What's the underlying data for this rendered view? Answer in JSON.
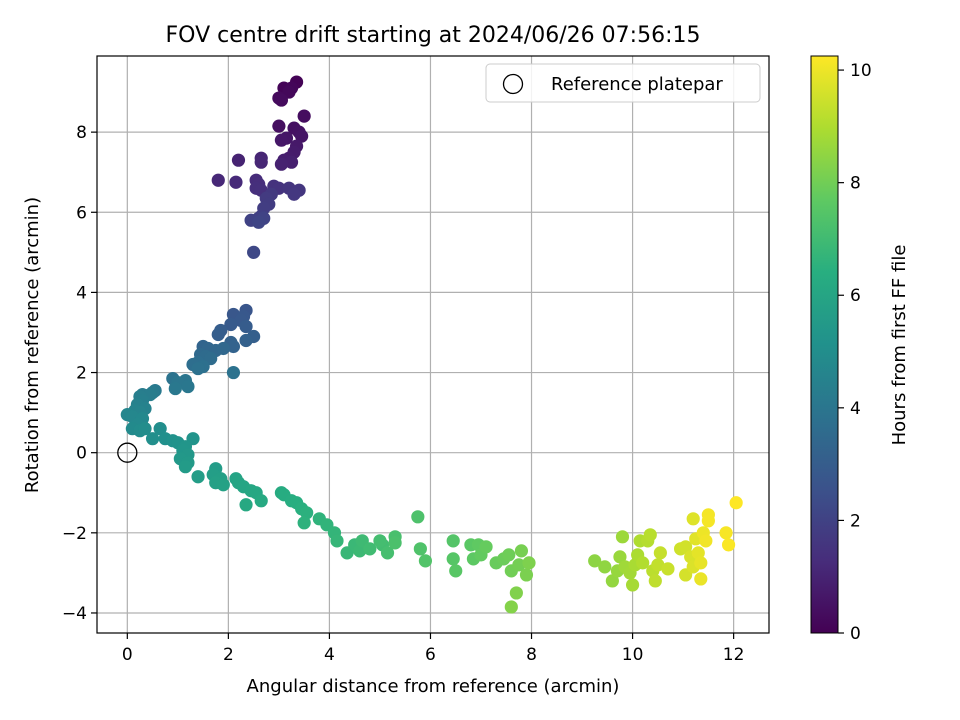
{
  "chart_data": {
    "type": "scatter",
    "title": "FOV centre drift starting at 2024/06/26 07:56:15",
    "xlabel": "Angular distance from reference (arcmin)",
    "ylabel": "Rotation from reference (arcmin)",
    "xlim": [
      -0.6,
      12.7
    ],
    "ylim": [
      -4.5,
      9.9
    ],
    "xticks": [
      0,
      2,
      4,
      6,
      8,
      10,
      12
    ],
    "yticks": [
      -4,
      -2,
      0,
      2,
      4,
      6,
      8
    ],
    "grid": true,
    "legend": {
      "placement": "top-right",
      "entries": [
        "Reference platepar"
      ]
    },
    "reference_point": {
      "x": 0,
      "y": 0,
      "label": "Reference platepar"
    },
    "colorbar": {
      "label": "Hours from first FF file",
      "range": [
        0,
        10.25
      ],
      "ticks": [
        0,
        2,
        4,
        6,
        8,
        10
      ],
      "colormap": "viridis"
    },
    "points": [
      [
        3.35,
        9.25,
        0.05
      ],
      [
        3.1,
        9.1,
        0.1
      ],
      [
        3.25,
        9.1,
        0.15
      ],
      [
        3.2,
        9.0,
        0.2
      ],
      [
        3.0,
        8.85,
        0.25
      ],
      [
        3.05,
        8.8,
        0.3
      ],
      [
        3.5,
        8.4,
        0.35
      ],
      [
        3.0,
        8.15,
        0.4
      ],
      [
        3.3,
        8.1,
        0.45
      ],
      [
        3.4,
        8.0,
        0.5
      ],
      [
        3.45,
        7.9,
        0.55
      ],
      [
        3.15,
        7.85,
        0.6
      ],
      [
        3.05,
        7.8,
        0.65
      ],
      [
        3.35,
        7.65,
        0.7
      ],
      [
        3.3,
        7.5,
        0.75
      ],
      [
        3.2,
        7.35,
        0.8
      ],
      [
        3.1,
        7.3,
        0.85
      ],
      [
        3.25,
        7.25,
        0.9
      ],
      [
        3.05,
        7.2,
        0.95
      ],
      [
        2.2,
        7.3,
        1.0
      ],
      [
        2.65,
        7.35,
        1.05
      ],
      [
        2.65,
        7.25,
        1.1
      ],
      [
        1.8,
        6.8,
        1.15
      ],
      [
        2.15,
        6.75,
        1.2
      ],
      [
        2.55,
        6.8,
        1.25
      ],
      [
        2.6,
        6.7,
        1.3
      ],
      [
        2.55,
        6.6,
        1.35
      ],
      [
        2.65,
        6.55,
        1.4
      ],
      [
        2.9,
        6.65,
        1.45
      ],
      [
        3.0,
        6.6,
        1.5
      ],
      [
        3.2,
        6.6,
        1.55
      ],
      [
        3.4,
        6.55,
        1.6
      ],
      [
        3.3,
        6.45,
        1.65
      ],
      [
        2.85,
        6.45,
        1.7
      ],
      [
        2.75,
        6.35,
        1.75
      ],
      [
        2.8,
        6.2,
        1.8
      ],
      [
        2.7,
        6.1,
        1.85
      ],
      [
        2.65,
        5.9,
        1.9
      ],
      [
        2.6,
        5.85,
        1.95
      ],
      [
        2.45,
        5.8,
        2.0
      ],
      [
        2.7,
        5.85,
        2.05
      ],
      [
        2.6,
        5.75,
        2.1
      ],
      [
        2.5,
        5.0,
        2.2
      ],
      [
        2.35,
        3.55,
        2.7
      ],
      [
        2.1,
        3.45,
        2.75
      ],
      [
        2.3,
        3.4,
        2.8
      ],
      [
        2.25,
        3.3,
        2.85
      ],
      [
        2.05,
        3.2,
        2.9
      ],
      [
        2.35,
        3.15,
        2.95
      ],
      [
        1.85,
        3.05,
        3.0
      ],
      [
        1.8,
        2.95,
        3.05
      ],
      [
        2.5,
        2.9,
        3.1
      ],
      [
        2.35,
        2.8,
        3.15
      ],
      [
        2.05,
        2.75,
        3.2
      ],
      [
        2.1,
        2.65,
        3.25
      ],
      [
        1.5,
        2.65,
        3.3
      ],
      [
        1.6,
        2.6,
        3.35
      ],
      [
        1.75,
        2.55,
        3.4
      ],
      [
        1.9,
        2.6,
        3.45
      ],
      [
        1.45,
        2.45,
        3.5
      ],
      [
        1.55,
        2.4,
        3.55
      ],
      [
        1.65,
        2.35,
        3.6
      ],
      [
        1.4,
        2.25,
        3.65
      ],
      [
        1.3,
        2.2,
        3.7
      ],
      [
        1.5,
        2.15,
        3.75
      ],
      [
        1.4,
        2.1,
        3.8
      ],
      [
        2.1,
        2.0,
        3.85
      ],
      [
        0.9,
        1.85,
        3.9
      ],
      [
        1.15,
        1.8,
        3.95
      ],
      [
        1.0,
        1.75,
        4.0
      ],
      [
        1.2,
        1.65,
        4.05
      ],
      [
        0.95,
        1.6,
        4.1
      ],
      [
        0.55,
        1.55,
        4.15
      ],
      [
        0.5,
        1.5,
        4.2
      ],
      [
        0.3,
        1.45,
        4.25
      ],
      [
        0.45,
        1.45,
        4.3
      ],
      [
        0.25,
        1.4,
        4.35
      ],
      [
        0.3,
        1.3,
        4.4
      ],
      [
        0.2,
        1.2,
        4.45
      ],
      [
        0.35,
        1.1,
        4.5
      ],
      [
        0.15,
        1.05,
        4.55
      ],
      [
        0.25,
        1.0,
        4.6
      ],
      [
        0.0,
        0.95,
        4.65
      ],
      [
        0.1,
        0.9,
        4.7
      ],
      [
        0.3,
        0.85,
        4.75
      ],
      [
        0.2,
        0.7,
        4.8
      ],
      [
        0.1,
        0.6,
        4.85
      ],
      [
        0.25,
        0.55,
        4.9
      ],
      [
        0.35,
        0.6,
        4.95
      ],
      [
        0.65,
        0.6,
        5.0
      ],
      [
        0.5,
        0.35,
        5.05
      ],
      [
        0.75,
        0.35,
        5.1
      ],
      [
        0.9,
        0.3,
        5.15
      ],
      [
        1.0,
        0.25,
        5.2
      ],
      [
        1.3,
        0.35,
        5.25
      ],
      [
        1.15,
        0.15,
        5.3
      ],
      [
        1.1,
        0.05,
        5.35
      ],
      [
        1.2,
        -0.05,
        5.4
      ],
      [
        1.05,
        -0.15,
        5.45
      ],
      [
        1.2,
        -0.25,
        5.5
      ],
      [
        1.15,
        -0.35,
        5.55
      ],
      [
        1.75,
        -0.4,
        5.6
      ],
      [
        1.4,
        -0.6,
        5.65
      ],
      [
        1.7,
        -0.55,
        5.7
      ],
      [
        1.85,
        -0.65,
        5.75
      ],
      [
        1.75,
        -0.75,
        5.8
      ],
      [
        1.9,
        -0.8,
        5.85
      ],
      [
        2.15,
        -0.65,
        5.9
      ],
      [
        2.2,
        -0.75,
        5.95
      ],
      [
        2.3,
        -0.85,
        6.0
      ],
      [
        2.45,
        -0.95,
        6.05
      ],
      [
        2.55,
        -1.0,
        6.1
      ],
      [
        2.35,
        -1.3,
        6.15
      ],
      [
        2.65,
        -1.2,
        6.2
      ],
      [
        3.05,
        -1.0,
        6.25
      ],
      [
        3.1,
        -1.05,
        6.3
      ],
      [
        3.25,
        -1.2,
        6.35
      ],
      [
        3.35,
        -1.25,
        6.4
      ],
      [
        3.45,
        -1.4,
        6.45
      ],
      [
        3.55,
        -1.5,
        6.5
      ],
      [
        3.5,
        -1.75,
        6.55
      ],
      [
        3.8,
        -1.65,
        6.6
      ],
      [
        3.95,
        -1.8,
        6.65
      ],
      [
        4.1,
        -2.0,
        6.7
      ],
      [
        4.15,
        -2.2,
        6.75
      ],
      [
        4.35,
        -2.5,
        6.8
      ],
      [
        4.5,
        -2.3,
        6.85
      ],
      [
        4.6,
        -2.45,
        6.9
      ],
      [
        4.65,
        -2.2,
        6.95
      ],
      [
        4.8,
        -2.4,
        7.0
      ],
      [
        5.05,
        -2.3,
        7.05
      ],
      [
        5.0,
        -2.2,
        7.1
      ],
      [
        5.15,
        -2.5,
        7.15
      ],
      [
        5.3,
        -2.1,
        7.2
      ],
      [
        5.3,
        -2.25,
        7.25
      ],
      [
        5.75,
        -1.6,
        7.3
      ],
      [
        5.8,
        -2.4,
        7.35
      ],
      [
        5.9,
        -2.7,
        7.4
      ],
      [
        6.45,
        -2.2,
        7.45
      ],
      [
        6.45,
        -2.65,
        7.5
      ],
      [
        6.5,
        -2.95,
        7.55
      ],
      [
        6.8,
        -2.3,
        7.6
      ],
      [
        6.85,
        -2.65,
        7.65
      ],
      [
        6.95,
        -2.3,
        7.7
      ],
      [
        7.0,
        -2.55,
        7.75
      ],
      [
        7.1,
        -2.35,
        7.8
      ],
      [
        7.3,
        -2.75,
        7.85
      ],
      [
        7.45,
        -2.65,
        7.9
      ],
      [
        7.55,
        -2.55,
        7.95
      ],
      [
        7.6,
        -2.95,
        8.0
      ],
      [
        7.75,
        -2.8,
        8.05
      ],
      [
        7.8,
        -2.45,
        8.1
      ],
      [
        7.9,
        -3.05,
        8.15
      ],
      [
        7.95,
        -2.75,
        8.2
      ],
      [
        7.7,
        -3.5,
        8.25
      ],
      [
        7.6,
        -3.85,
        8.3
      ],
      [
        9.25,
        -2.7,
        8.45
      ],
      [
        9.45,
        -2.85,
        8.5
      ],
      [
        9.6,
        -3.2,
        8.55
      ],
      [
        9.7,
        -2.95,
        8.6
      ],
      [
        9.75,
        -2.6,
        8.65
      ],
      [
        9.8,
        -2.1,
        8.7
      ],
      [
        9.85,
        -2.85,
        8.75
      ],
      [
        9.95,
        -3.0,
        8.8
      ],
      [
        10.0,
        -3.3,
        8.85
      ],
      [
        10.05,
        -2.8,
        8.9
      ],
      [
        10.1,
        -2.55,
        8.95
      ],
      [
        10.15,
        -2.2,
        9.0
      ],
      [
        10.2,
        -2.75,
        9.05
      ],
      [
        10.3,
        -2.2,
        9.1
      ],
      [
        10.35,
        -2.05,
        9.15
      ],
      [
        10.4,
        -2.95,
        9.2
      ],
      [
        10.45,
        -3.2,
        9.25
      ],
      [
        10.5,
        -2.8,
        9.3
      ],
      [
        10.55,
        -2.5,
        9.35
      ],
      [
        10.7,
        -2.9,
        9.4
      ],
      [
        10.95,
        -2.4,
        9.5
      ],
      [
        11.05,
        -2.35,
        9.55
      ],
      [
        11.05,
        -3.05,
        9.6
      ],
      [
        11.15,
        -2.6,
        9.65
      ],
      [
        11.2,
        -2.85,
        9.7
      ],
      [
        11.2,
        -1.65,
        9.75
      ],
      [
        11.25,
        -2.15,
        9.8
      ],
      [
        11.3,
        -2.5,
        9.85
      ],
      [
        11.35,
        -2.75,
        9.9
      ],
      [
        11.35,
        -3.15,
        9.95
      ],
      [
        11.4,
        -2.0,
        10.0
      ],
      [
        11.45,
        -2.2,
        10.05
      ],
      [
        11.5,
        -1.55,
        10.1
      ],
      [
        11.5,
        -1.7,
        10.12
      ],
      [
        11.85,
        -2.0,
        10.15
      ],
      [
        11.9,
        -2.3,
        10.2
      ],
      [
        12.05,
        -1.25,
        10.25
      ]
    ]
  }
}
